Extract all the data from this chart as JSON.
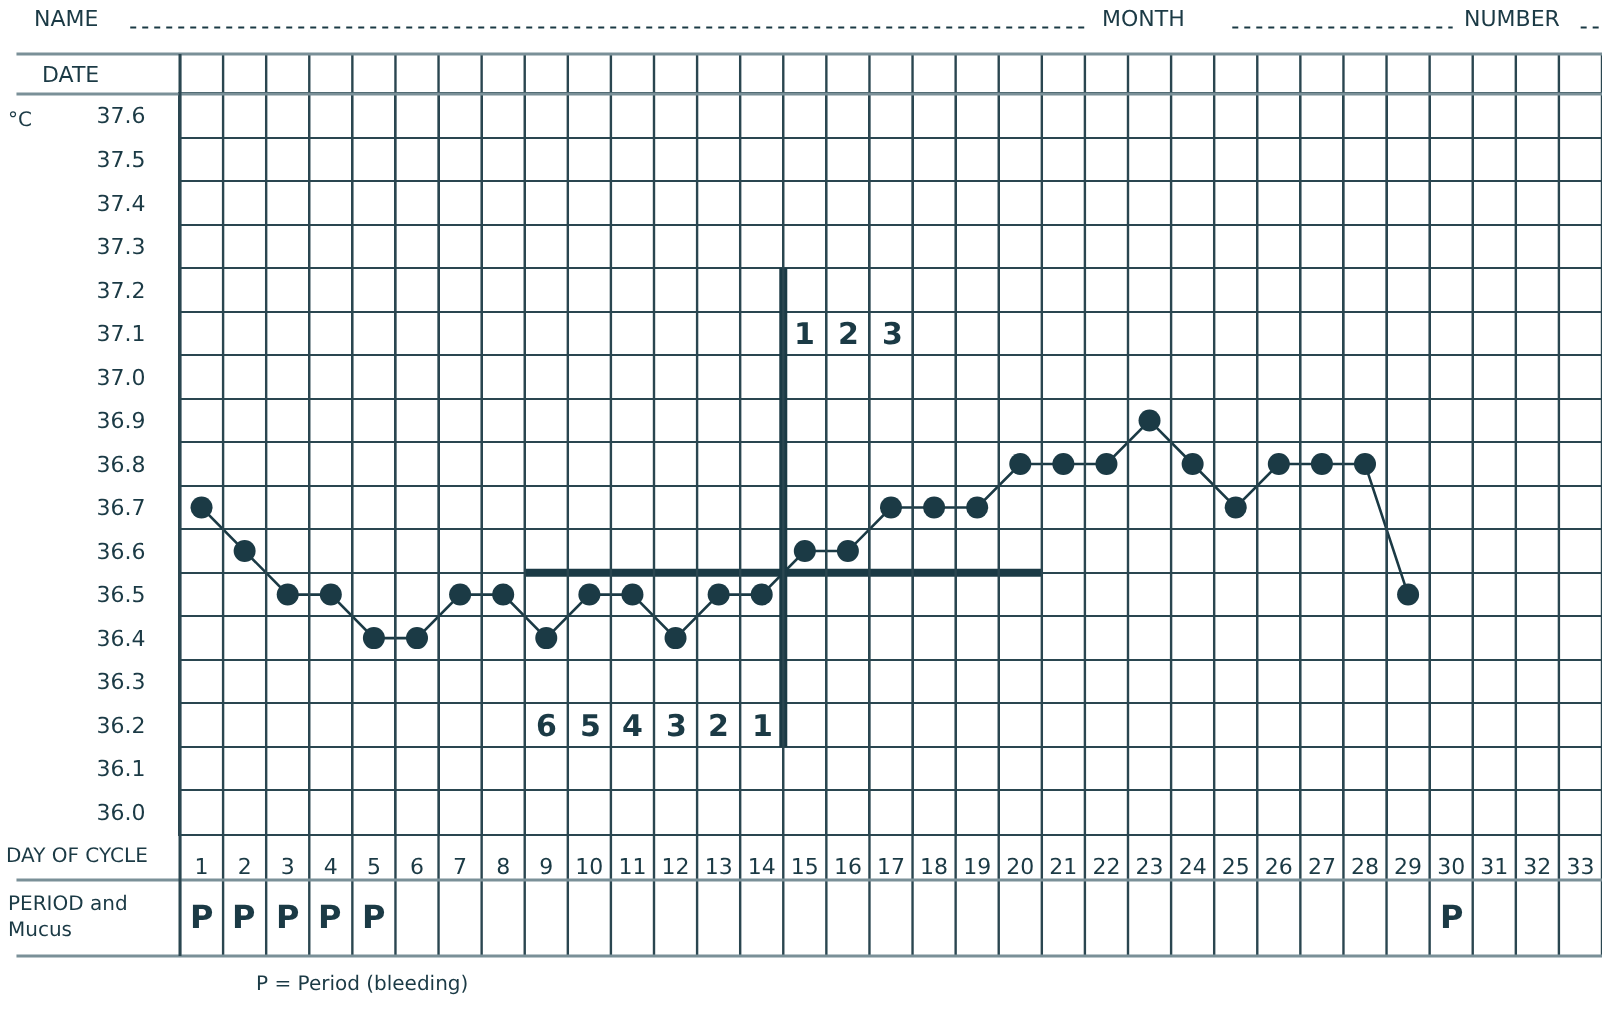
{
  "chart_data": {
    "type": "line",
    "ylabel": "°C",
    "xlabel": "DAY OF CYCLE",
    "x": [
      1,
      2,
      3,
      4,
      5,
      6,
      7,
      8,
      9,
      10,
      11,
      12,
      13,
      14,
      15,
      16,
      17,
      18,
      19,
      20,
      21,
      22,
      23,
      24,
      25,
      26,
      27,
      28,
      29
    ],
    "xlim": [
      0.5,
      33.5
    ],
    "xticks": [
      1,
      2,
      3,
      4,
      5,
      6,
      7,
      8,
      9,
      10,
      11,
      12,
      13,
      14,
      15,
      16,
      17,
      18,
      19,
      20,
      21,
      22,
      23,
      24,
      25,
      26,
      27,
      28,
      29,
      30,
      31,
      32,
      33
    ],
    "ylim": [
      35.95,
      37.65
    ],
    "yticks": [
      {
        "value": 36.0,
        "label": "36.0"
      },
      {
        "value": 36.1,
        "label": "36.1"
      },
      {
        "value": 36.2,
        "label": "36.2"
      },
      {
        "value": 36.3,
        "label": "36.3"
      },
      {
        "value": 36.4,
        "label": "36.4"
      },
      {
        "value": 36.5,
        "label": "36.5"
      },
      {
        "value": 36.6,
        "label": "36.6"
      },
      {
        "value": 36.7,
        "label": "36.7"
      },
      {
        "value": 36.8,
        "label": "36.8"
      },
      {
        "value": 36.9,
        "label": "36.9"
      },
      {
        "value": 37.0,
        "label": "37.0"
      },
      {
        "value": 37.1,
        "label": "37.1"
      },
      {
        "value": 37.2,
        "label": "37.2"
      },
      {
        "value": 37.3,
        "label": "37.3"
      },
      {
        "value": 37.4,
        "label": "37.4"
      },
      {
        "value": 37.5,
        "label": "37.5"
      },
      {
        "value": 37.6,
        "label": "37.6"
      }
    ],
    "grid": true,
    "marker": "circle",
    "line_style": "solid",
    "series": [
      {
        "color": "#1b3a45",
        "values": [
          36.7,
          36.6,
          36.5,
          36.5,
          36.4,
          36.4,
          36.5,
          36.5,
          36.4,
          36.5,
          36.5,
          36.4,
          36.5,
          36.5,
          36.6,
          36.6,
          36.7,
          36.7,
          36.7,
          36.8,
          36.8,
          36.8,
          36.9,
          36.8,
          36.7,
          36.8,
          36.8,
          36.8,
          36.5
        ]
      },
      {
        "type": "line",
        "marker": "none",
        "color": "#1b3a45",
        "x": [
          8.5,
          20.5
        ],
        "values": [
          36.55,
          36.55
        ]
      },
      {
        "type": "line",
        "marker": "none",
        "color": "#1b3a45",
        "x": [
          14.5,
          14.5
        ],
        "values": [
          36.15,
          37.25
        ]
      }
    ],
    "annotations": [
      "NAME",
      "MONTH",
      "NUMBER",
      "DATE",
      "PERIOD and Mucus",
      "P = Period (bleeding)",
      "1",
      "2",
      "3",
      "6",
      "5",
      "4",
      "3",
      "2",
      "1",
      "P",
      "P",
      "P",
      "P",
      "P",
      "P"
    ]
  }
}
